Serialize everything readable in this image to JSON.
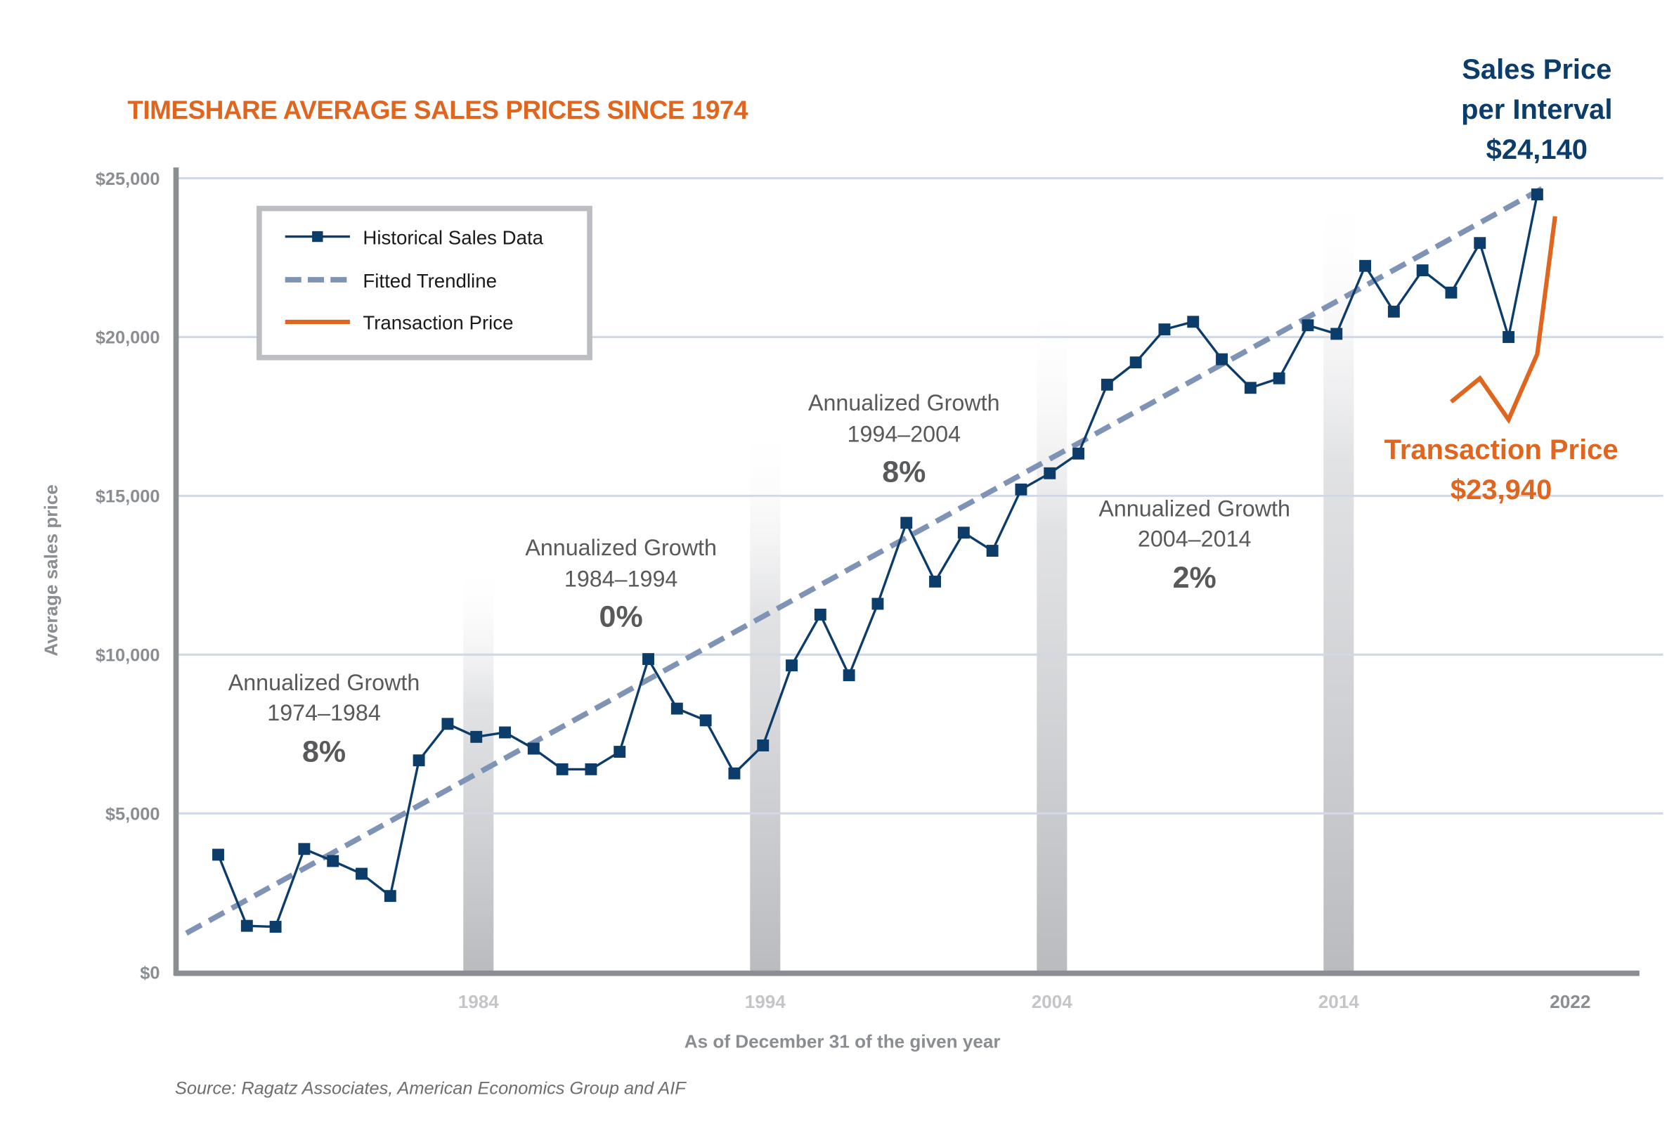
{
  "chart_data": {
    "type": "line",
    "title": "TIMESHARE AVERAGE SALES PRICES SINCE 1974",
    "xlabel": "As of December 31 of the given year",
    "ylabel": "Average sales price",
    "xlim": [
      1973,
      2023
    ],
    "ylim": [
      0,
      25000
    ],
    "grid": true,
    "yticks": [
      0,
      5000,
      10000,
      15000,
      20000,
      25000
    ],
    "ytick_labels": [
      "$0",
      "$5,000",
      "$10,000",
      "$15,000",
      "$20,000",
      "$25,000"
    ],
    "xticks": [
      1984,
      1994,
      2004,
      2014,
      2022
    ],
    "xtick_labels": [
      "1984",
      "1994",
      "2004",
      "2014",
      "2022"
    ],
    "highlight_years": [
      1984,
      1994,
      2004,
      2014
    ],
    "legend": {
      "placement": "top-left",
      "entries": [
        "Historical Sales Data",
        "Fitted Trendline",
        "Transaction Price"
      ]
    },
    "series": [
      {
        "name": "Historical Sales Data",
        "color": "#0c3c6a",
        "style": "solid-with-square-markers",
        "x": [
          1975,
          1976,
          1977,
          1978,
          1979,
          1980,
          1981,
          1982,
          1983,
          1984,
          1985,
          1986,
          1987,
          1988,
          1989,
          1990,
          1991,
          1992,
          1993,
          1994,
          1995,
          1996,
          1997,
          1998,
          1999,
          2000,
          2001,
          2002,
          2003,
          2004,
          2005,
          2006,
          2007,
          2008,
          2009,
          2010,
          2011,
          2012,
          2013,
          2014,
          2015,
          2016,
          2017,
          2018,
          2019,
          2020,
          2021
        ],
        "values": [
          3700,
          1460,
          1430,
          3880,
          3500,
          3100,
          2400,
          6670,
          7820,
          7410,
          7550,
          7040,
          6390,
          6390,
          6940,
          9860,
          8300,
          7930,
          6260,
          7140,
          9660,
          11260,
          9350,
          11600,
          14150,
          12300,
          13840,
          13270,
          15200,
          15710,
          16330,
          18500,
          19200,
          20240,
          20480,
          19300,
          18400,
          18700,
          20370,
          20100,
          22240,
          20800,
          22100,
          21400,
          22960,
          20000,
          24490
        ]
      },
      {
        "name": "Fitted Trendline",
        "color": "#7f94b5",
        "style": "dashed",
        "x": [
          1974,
          2022
        ],
        "values": [
          1500,
          24750
        ]
      },
      {
        "name": "Transaction Price",
        "color": "#e0651f",
        "style": "solid",
        "x": [
          2018,
          2019,
          2020,
          2021,
          2022
        ],
        "values": [
          17960,
          18700,
          17400,
          19460,
          23800
        ]
      }
    ],
    "annotations": [
      {
        "line1": "Annualized Growth",
        "line2": "1974–1984",
        "value": "8%"
      },
      {
        "line1": "Annualized Growth",
        "line2": "1984–1994",
        "value": "0%"
      },
      {
        "line1": "Annualized Growth",
        "line2": "1994–2004",
        "value": "8%"
      },
      {
        "line1": "Annualized Growth",
        "line2": "2004–2014",
        "value": "2%"
      }
    ],
    "callouts": {
      "sales_price": {
        "line1": "Sales Price",
        "line2": "per Interval",
        "value": "$24,140"
      },
      "transaction_price": {
        "line1": "Transaction Price",
        "value": "$23,940"
      }
    },
    "source": "Source: Ragatz Associates, American Economics Group and AIF"
  }
}
